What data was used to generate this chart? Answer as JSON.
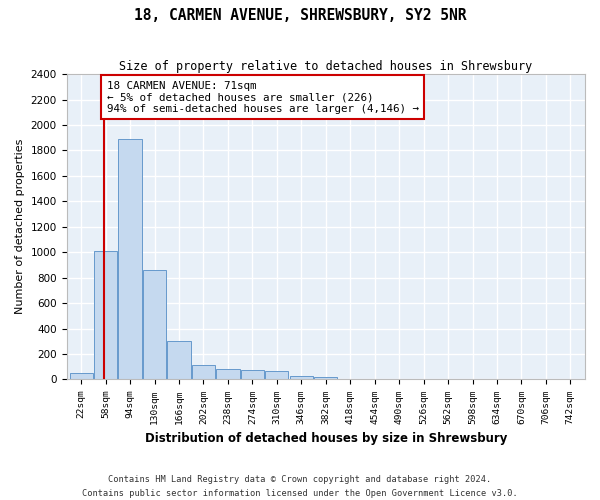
{
  "title": "18, CARMEN AVENUE, SHREWSBURY, SY2 5NR",
  "subtitle": "Size of property relative to detached houses in Shrewsbury",
  "xlabel": "Distribution of detached houses by size in Shrewsbury",
  "ylabel": "Number of detached properties",
  "bar_color": "#c5d9ef",
  "bar_edge_color": "#6699cc",
  "background_color": "#e8f0f8",
  "grid_color": "#ffffff",
  "fig_background": "#ffffff",
  "categories": [
    "22sqm",
    "58sqm",
    "94sqm",
    "130sqm",
    "166sqm",
    "202sqm",
    "238sqm",
    "274sqm",
    "310sqm",
    "346sqm",
    "382sqm",
    "418sqm",
    "454sqm",
    "490sqm",
    "526sqm",
    "562sqm",
    "598sqm",
    "634sqm",
    "670sqm",
    "706sqm",
    "742sqm"
  ],
  "bar_heights": [
    50,
    1010,
    1890,
    860,
    300,
    110,
    85,
    75,
    65,
    30,
    20,
    0,
    0,
    0,
    0,
    0,
    0,
    0,
    0,
    0,
    0
  ],
  "property_line_x": 0.95,
  "property_line_color": "#cc0000",
  "annotation_text": "18 CARMEN AVENUE: 71sqm\n← 5% of detached houses are smaller (226)\n94% of semi-detached houses are larger (4,146) →",
  "annotation_box_color": "#ffffff",
  "annotation_box_edge_color": "#cc0000",
  "ylim": [
    0,
    2400
  ],
  "yticks": [
    0,
    200,
    400,
    600,
    800,
    1000,
    1200,
    1400,
    1600,
    1800,
    2000,
    2200,
    2400
  ],
  "footer_line1": "Contains HM Land Registry data © Crown copyright and database right 2024.",
  "footer_line2": "Contains public sector information licensed under the Open Government Licence v3.0."
}
